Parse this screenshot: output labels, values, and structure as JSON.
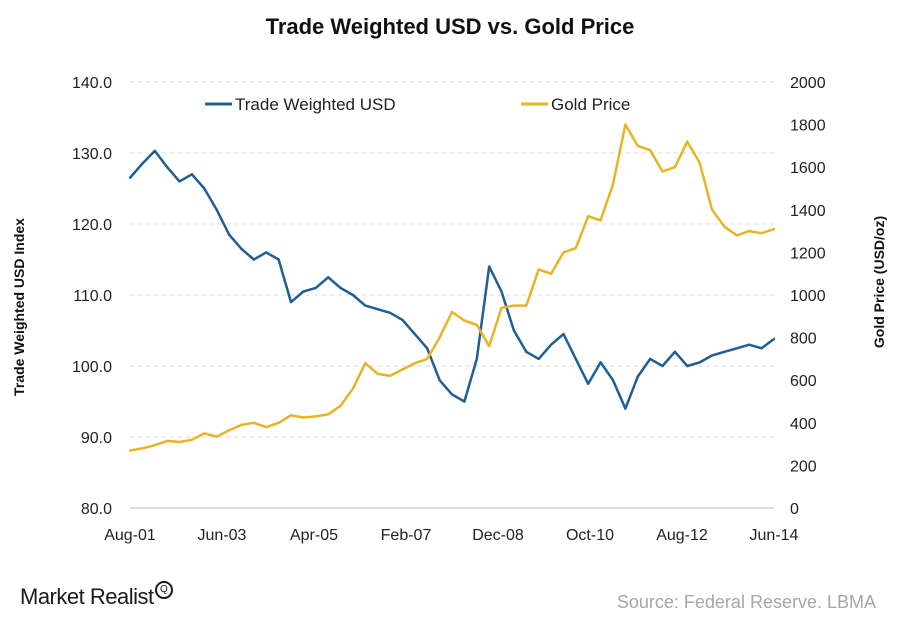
{
  "chart_data": {
    "type": "line",
    "title": "Trade Weighted USD vs. Gold Price",
    "xlabel": "",
    "ylabel": "Trade Weighted USD Index",
    "y2label": "Gold Price (USD/oz)",
    "ylim": [
      80,
      140
    ],
    "y2lim": [
      0,
      2000
    ],
    "yticks": [
      "140.0",
      "130.0",
      "120.0",
      "110.0",
      "100.0",
      "90.0",
      "80.0"
    ],
    "y2ticks": [
      "2000",
      "1800",
      "1600",
      "1400",
      "1200",
      "1000",
      "800",
      "600",
      "400",
      "200",
      "0"
    ],
    "xticks": [
      "Aug-01",
      "Jun-03",
      "Apr-05",
      "Feb-07",
      "Dec-08",
      "Oct-10",
      "Aug-12",
      "Jun-14"
    ],
    "legend": {
      "placement": "top",
      "entries": [
        "Trade Weighted USD",
        "Gold Price"
      ]
    },
    "x": [
      "Aug-01",
      "Nov-01",
      "Feb-02",
      "May-02",
      "Aug-02",
      "Nov-02",
      "Feb-03",
      "May-03",
      "Aug-03",
      "Nov-03",
      "Feb-04",
      "May-04",
      "Aug-04",
      "Nov-04",
      "Feb-05",
      "May-05",
      "Aug-05",
      "Nov-05",
      "Feb-06",
      "May-06",
      "Aug-06",
      "Nov-06",
      "Feb-07",
      "May-07",
      "Aug-07",
      "Nov-07",
      "Feb-08",
      "May-08",
      "Aug-08",
      "Nov-08",
      "Feb-09",
      "May-09",
      "Aug-09",
      "Nov-09",
      "Feb-10",
      "May-10",
      "Aug-10",
      "Nov-10",
      "Feb-11",
      "May-11",
      "Aug-11",
      "Nov-11",
      "Feb-12",
      "May-12",
      "Aug-12",
      "Nov-12",
      "Feb-13",
      "May-13",
      "Aug-13",
      "Nov-13",
      "Feb-14",
      "May-14",
      "Jul-14"
    ],
    "series": [
      {
        "name": "Trade Weighted USD",
        "axis": "left",
        "color": "#1f5f95",
        "values": [
          126.5,
          128.5,
          130.3,
          128.0,
          126.0,
          127.0,
          125.0,
          122.0,
          118.5,
          116.5,
          115.0,
          116.0,
          115.0,
          109.0,
          110.5,
          111.0,
          112.5,
          111.0,
          110.0,
          108.5,
          108.0,
          107.5,
          106.5,
          104.5,
          102.5,
          98.0,
          96.0,
          95.0,
          101.0,
          114.0,
          110.5,
          105.0,
          102.0,
          101.0,
          103.0,
          104.5,
          101.0,
          97.5,
          100.5,
          98.0,
          94.0,
          98.5,
          101.0,
          100.0,
          102.0,
          100.0,
          100.5,
          101.5,
          102.0,
          102.5,
          103.0,
          102.5,
          103.8
        ]
      },
      {
        "name": "Gold Price",
        "axis": "right",
        "color": "#e8b425",
        "values": [
          270,
          280,
          295,
          315,
          310,
          320,
          350,
          335,
          365,
          390,
          400,
          380,
          400,
          435,
          425,
          430,
          440,
          480,
          560,
          680,
          630,
          620,
          650,
          680,
          700,
          800,
          920,
          880,
          860,
          760,
          940,
          950,
          950,
          1120,
          1100,
          1200,
          1220,
          1370,
          1350,
          1520,
          1800,
          1700,
          1680,
          1580,
          1600,
          1720,
          1620,
          1400,
          1320,
          1280,
          1300,
          1290,
          1310
        ]
      }
    ]
  },
  "brand": {
    "name": "Market Realist",
    "mark": "Q"
  },
  "source": "Source: Federal Reserve. LBMA"
}
